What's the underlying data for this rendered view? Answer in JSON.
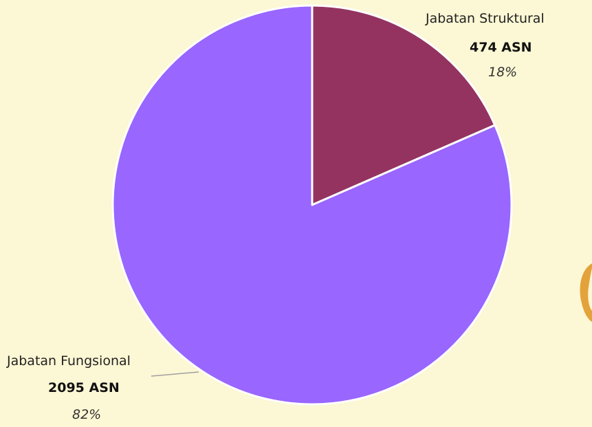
{
  "chart_data": {
    "type": "pie",
    "title": "",
    "start_angle_deg": 0,
    "direction": "clockwise",
    "slices": [
      {
        "name": "Jabatan Struktural",
        "value": 474,
        "value_label": "474 ASN",
        "percent": 18,
        "percent_label": "18%",
        "color": "#943360"
      },
      {
        "name": "Jabatan Fungsional",
        "value": 2095,
        "value_label": "2095 ASN",
        "percent": 82,
        "percent_label": "82%",
        "color": "#9966ff"
      }
    ]
  },
  "colors": {
    "background": "#fcf7d4",
    "slice_border": "#ffffff",
    "leader_line": "#a0a0a0",
    "decoration_orange": "#e3a33a"
  },
  "decoration": {
    "icon": "partial-orange-ring-icon"
  }
}
